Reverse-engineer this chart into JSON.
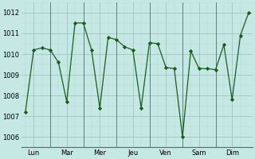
{
  "x_values": [
    0,
    1,
    2,
    3,
    4,
    5,
    6,
    7,
    8,
    9,
    10,
    11,
    12,
    13,
    14,
    15,
    16,
    17,
    18,
    19,
    20,
    21,
    22,
    23,
    24,
    25,
    26,
    27
  ],
  "y_values": [
    1007.2,
    1010.2,
    1010.3,
    1010.2,
    1009.6,
    1007.7,
    1011.5,
    1011.5,
    1010.2,
    1007.4,
    1010.8,
    1010.7,
    1010.35,
    1010.2,
    1007.4,
    1010.55,
    1010.5,
    1009.35,
    1009.3,
    1006.0,
    1010.15,
    1009.3,
    1009.3,
    1009.25,
    1010.45,
    1007.8,
    1010.9,
    1012.0
  ],
  "ylim": [
    1005.5,
    1012.5
  ],
  "yticks": [
    1006,
    1007,
    1008,
    1009,
    1010,
    1011,
    1012
  ],
  "day_labels": [
    "Lun",
    "Mar",
    "Mer",
    "Jeu",
    "Ven",
    "Sam",
    "Dim"
  ],
  "day_tick_positions": [
    1,
    5,
    9,
    13,
    17,
    21,
    25
  ],
  "day_sep_positions": [
    3,
    7,
    11,
    15,
    19,
    23
  ],
  "line_color": "#1a5c1a",
  "marker_color": "#1a5c1a",
  "bg_color": "#c5e8e5",
  "grid_major_color": "#9dbdba",
  "grid_minor_color": "#b5d5d2"
}
